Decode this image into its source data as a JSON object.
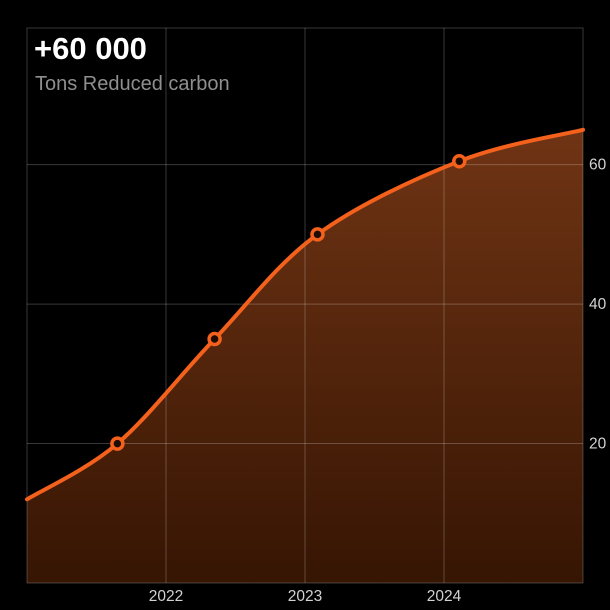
{
  "header": {
    "value": "+60 000",
    "label": "Tons Reduced carbon"
  },
  "colors": {
    "background": "#000000",
    "line": "#F4611C",
    "area_top": "#703414",
    "area_bottom": "#361503",
    "grid": "rgba(255,255,255,0.22)",
    "title": "#FFFFFF",
    "subtitle": "#8F8F8F",
    "tick_label": "#D2D2D2",
    "marker_fill": "#1E0B02"
  },
  "chart_data": {
    "type": "area",
    "title": "+60 000",
    "subtitle": "Tons Reduced carbon",
    "x": [
      2021.0,
      2021.65,
      2022.35,
      2023.09,
      2024.11,
      2025.0
    ],
    "y": [
      12,
      20,
      35,
      50,
      60.5,
      65
    ],
    "marker_indices": [
      1,
      2,
      3,
      4
    ],
    "xticks": [
      {
        "value": 2022,
        "label": "2022"
      },
      {
        "value": 2023,
        "label": "2023"
      },
      {
        "value": 2024,
        "label": "2024"
      }
    ],
    "yticks": [
      {
        "value": 20,
        "label": "20"
      },
      {
        "value": 40,
        "label": "40"
      },
      {
        "value": 60,
        "label": "60"
      }
    ],
    "xlim": [
      2021,
      2025
    ],
    "ylim": [
      0,
      79.6
    ],
    "grid": true,
    "legend": false,
    "yaxis_side": "right",
    "line_width": 4
  }
}
